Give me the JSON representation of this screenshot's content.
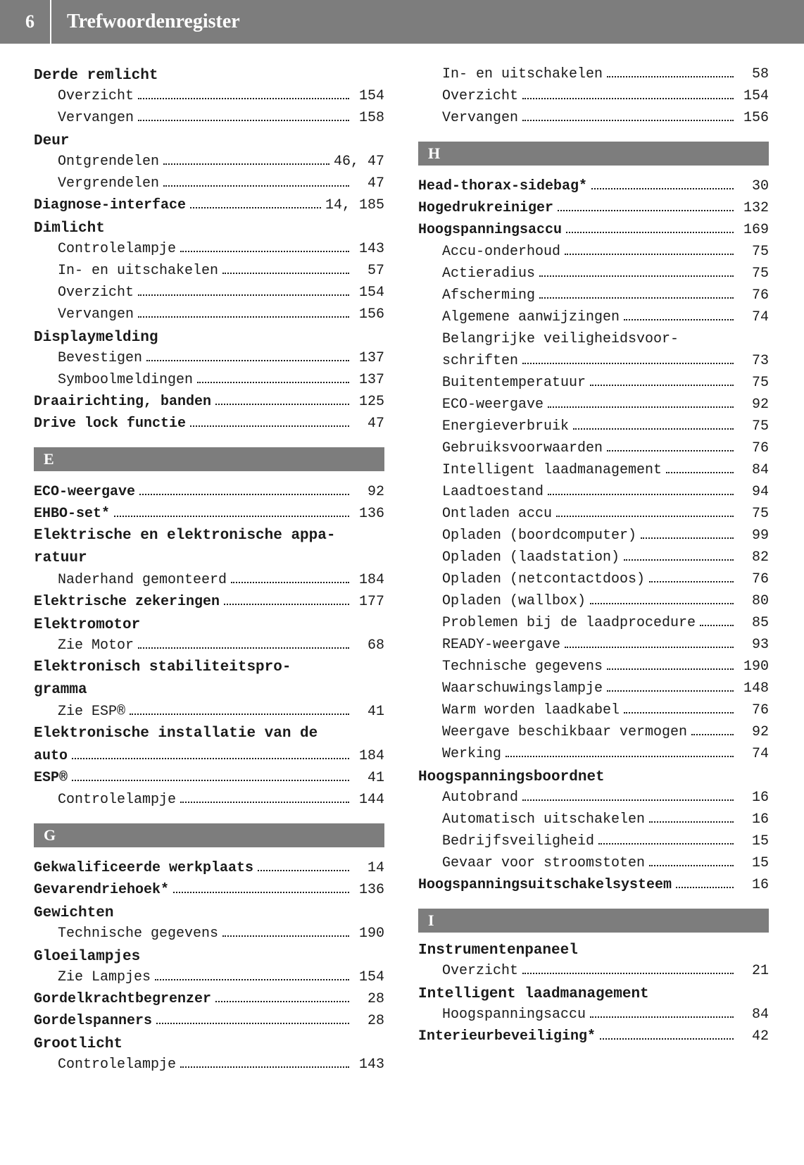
{
  "header": {
    "page_number": "6",
    "title": "Trefwoordenregister"
  },
  "left_column": [
    {
      "type": "head",
      "text": "Derde remlicht"
    },
    {
      "type": "sub",
      "label": "Overzicht",
      "page": "154"
    },
    {
      "type": "sub",
      "label": "Vervangen",
      "page": "158"
    },
    {
      "type": "head",
      "text": "Deur"
    },
    {
      "type": "sub",
      "label": "Ontgrendelen",
      "page": "46, 47"
    },
    {
      "type": "sub",
      "label": "Vergrendelen",
      "page": "47"
    },
    {
      "type": "bold",
      "label": "Diagnose-interface",
      "page": "14, 185"
    },
    {
      "type": "head",
      "text": "Dimlicht"
    },
    {
      "type": "sub",
      "label": "Controlelampje",
      "page": "143"
    },
    {
      "type": "sub",
      "label": "In- en uitschakelen",
      "page": "57"
    },
    {
      "type": "sub",
      "label": "Overzicht",
      "page": "154"
    },
    {
      "type": "sub",
      "label": "Vervangen",
      "page": "156"
    },
    {
      "type": "head",
      "text": "Displaymelding"
    },
    {
      "type": "sub",
      "label": "Bevestigen",
      "page": "137"
    },
    {
      "type": "sub",
      "label": "Symboolmeldingen",
      "page": "137"
    },
    {
      "type": "bold",
      "label": "Draairichting, banden",
      "page": "125"
    },
    {
      "type": "bold",
      "label": "Drive lock functie",
      "page": "47"
    },
    {
      "type": "letter",
      "text": "E"
    },
    {
      "type": "bold",
      "label": "ECO-weergave",
      "page": "92"
    },
    {
      "type": "bold",
      "label": "EHBO-set*",
      "page": "136"
    },
    {
      "type": "multihead",
      "lines": [
        "Elektrische en elektronische appa-",
        "ratuur"
      ]
    },
    {
      "type": "sub",
      "label": "Naderhand gemonteerd",
      "page": "184"
    },
    {
      "type": "bold",
      "label": "Elektrische zekeringen",
      "page": "177"
    },
    {
      "type": "head",
      "text": "Elektromotor"
    },
    {
      "type": "sub",
      "label": "Zie Motor",
      "page": "68"
    },
    {
      "type": "multihead",
      "lines": [
        "Elektronisch stabiliteitspro-",
        "gramma"
      ]
    },
    {
      "type": "sub",
      "label": "Zie ESP®",
      "page": "41"
    },
    {
      "type": "multibold",
      "lines": [
        "Elektronische installatie van de"
      ],
      "last_label": "auto",
      "page": "184"
    },
    {
      "type": "bold",
      "label": "ESP®",
      "page": "41"
    },
    {
      "type": "sub",
      "label": "Controlelampje",
      "page": "144"
    },
    {
      "type": "letter",
      "text": "G"
    },
    {
      "type": "bold",
      "label": "Gekwalificeerde werkplaats",
      "page": "14"
    },
    {
      "type": "bold",
      "label": "Gevarendriehoek*",
      "page": "136"
    },
    {
      "type": "head",
      "text": "Gewichten"
    },
    {
      "type": "sub",
      "label": "Technische gegevens",
      "page": "190"
    },
    {
      "type": "head",
      "text": "Gloeilampjes"
    },
    {
      "type": "sub",
      "label": "Zie Lampjes",
      "page": "154"
    },
    {
      "type": "bold",
      "label": "Gordelkrachtbegrenzer",
      "page": "28"
    },
    {
      "type": "bold",
      "label": "Gordelspanners",
      "page": "28"
    },
    {
      "type": "head",
      "text": "Grootlicht"
    },
    {
      "type": "sub",
      "label": "Controlelampje",
      "page": "143"
    }
  ],
  "right_column": [
    {
      "type": "sub",
      "label": "In- en uitschakelen",
      "page": "58"
    },
    {
      "type": "sub",
      "label": "Overzicht",
      "page": "154"
    },
    {
      "type": "sub",
      "label": "Vervangen",
      "page": "156"
    },
    {
      "type": "letter",
      "text": "H"
    },
    {
      "type": "bold",
      "label": "Head-thorax-sidebag*",
      "page": "30"
    },
    {
      "type": "bold",
      "label": "Hogedrukreiniger",
      "page": "132"
    },
    {
      "type": "bold",
      "label": "Hoogspanningsaccu",
      "page": "169"
    },
    {
      "type": "sub",
      "label": "Accu-onderhoud",
      "page": "75"
    },
    {
      "type": "sub",
      "label": "Actieradius",
      "page": "75"
    },
    {
      "type": "sub",
      "label": "Afscherming",
      "page": "76"
    },
    {
      "type": "sub",
      "label": "Algemene aanwijzingen",
      "page": "74"
    },
    {
      "type": "subwrap",
      "lines": [
        "Belangrijke veiligheidsvoor-"
      ],
      "last_label": "schriften",
      "page": "73"
    },
    {
      "type": "sub",
      "label": "Buitentemperatuur",
      "page": "75"
    },
    {
      "type": "sub",
      "label": "ECO-weergave",
      "page": "92"
    },
    {
      "type": "sub",
      "label": "Energieverbruik",
      "page": "75"
    },
    {
      "type": "sub",
      "label": "Gebruiksvoorwaarden",
      "page": "76"
    },
    {
      "type": "sub",
      "label": "Intelligent laadmanagement",
      "page": "84"
    },
    {
      "type": "sub",
      "label": "Laadtoestand",
      "page": "94"
    },
    {
      "type": "sub",
      "label": "Ontladen accu",
      "page": "75"
    },
    {
      "type": "sub",
      "label": "Opladen (boordcomputer)",
      "page": "99"
    },
    {
      "type": "sub",
      "label": "Opladen (laadstation)",
      "page": "82"
    },
    {
      "type": "sub",
      "label": "Opladen (netcontactdoos)",
      "page": "76"
    },
    {
      "type": "sub",
      "label": "Opladen (wallbox)",
      "page": "80"
    },
    {
      "type": "sub",
      "label": "Problemen bij de laadprocedure",
      "page": "85"
    },
    {
      "type": "sub",
      "label": "READY-weergave",
      "page": "93"
    },
    {
      "type": "sub",
      "label": "Technische gegevens",
      "page": "190"
    },
    {
      "type": "sub",
      "label": "Waarschuwingslampje",
      "page": "148"
    },
    {
      "type": "sub",
      "label": "Warm worden laadkabel",
      "page": "76"
    },
    {
      "type": "sub",
      "label": "Weergave beschikbaar vermogen",
      "page": "92"
    },
    {
      "type": "sub",
      "label": "Werking",
      "page": "74"
    },
    {
      "type": "head",
      "text": "Hoogspanningsboordnet"
    },
    {
      "type": "sub",
      "label": "Autobrand",
      "page": "16"
    },
    {
      "type": "sub",
      "label": "Automatisch uitschakelen",
      "page": "16"
    },
    {
      "type": "sub",
      "label": "Bedrijfsveiligheid",
      "page": "15"
    },
    {
      "type": "sub",
      "label": "Gevaar voor stroomstoten",
      "page": "15"
    },
    {
      "type": "bold",
      "label": "Hoogspanningsuitschakelsysteem",
      "page": "16"
    },
    {
      "type": "letter",
      "text": "I"
    },
    {
      "type": "head",
      "text": "Instrumentenpaneel"
    },
    {
      "type": "sub",
      "label": "Overzicht",
      "page": "21"
    },
    {
      "type": "head",
      "text": "Intelligent laadmanagement"
    },
    {
      "type": "sub",
      "label": "Hoogspanningsaccu",
      "page": "84"
    },
    {
      "type": "bold",
      "label": "Interieurbeveiliging*",
      "page": "42"
    }
  ]
}
